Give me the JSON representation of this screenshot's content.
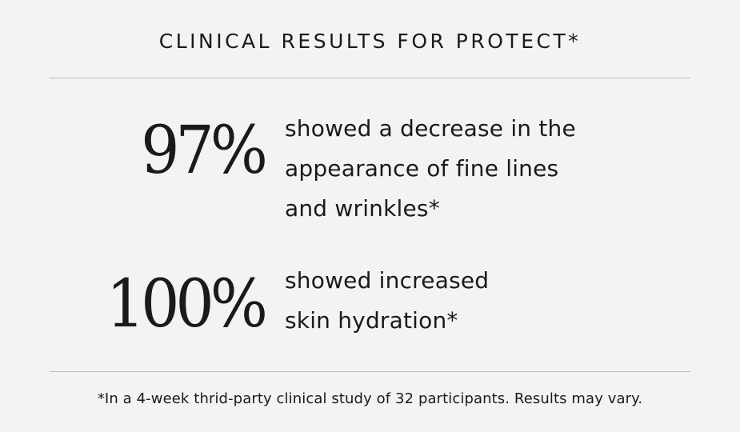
{
  "header": {
    "title": "CLINICAL RESULTS FOR PROTECT*"
  },
  "stats": [
    {
      "value": "97%",
      "lines": [
        "showed a decrease in the",
        "appearance of fine lines",
        "and wrinkles*"
      ]
    },
    {
      "value": "100%",
      "lines": [
        "showed increased",
        "skin hydration*"
      ]
    }
  ],
  "footnote": "*In a 4-week thrid-party clinical study of 32 participants. Results may vary.",
  "colors": {
    "background": "#f3f3f3",
    "text": "#1a1a1a",
    "divider": "#bdbdbd"
  }
}
